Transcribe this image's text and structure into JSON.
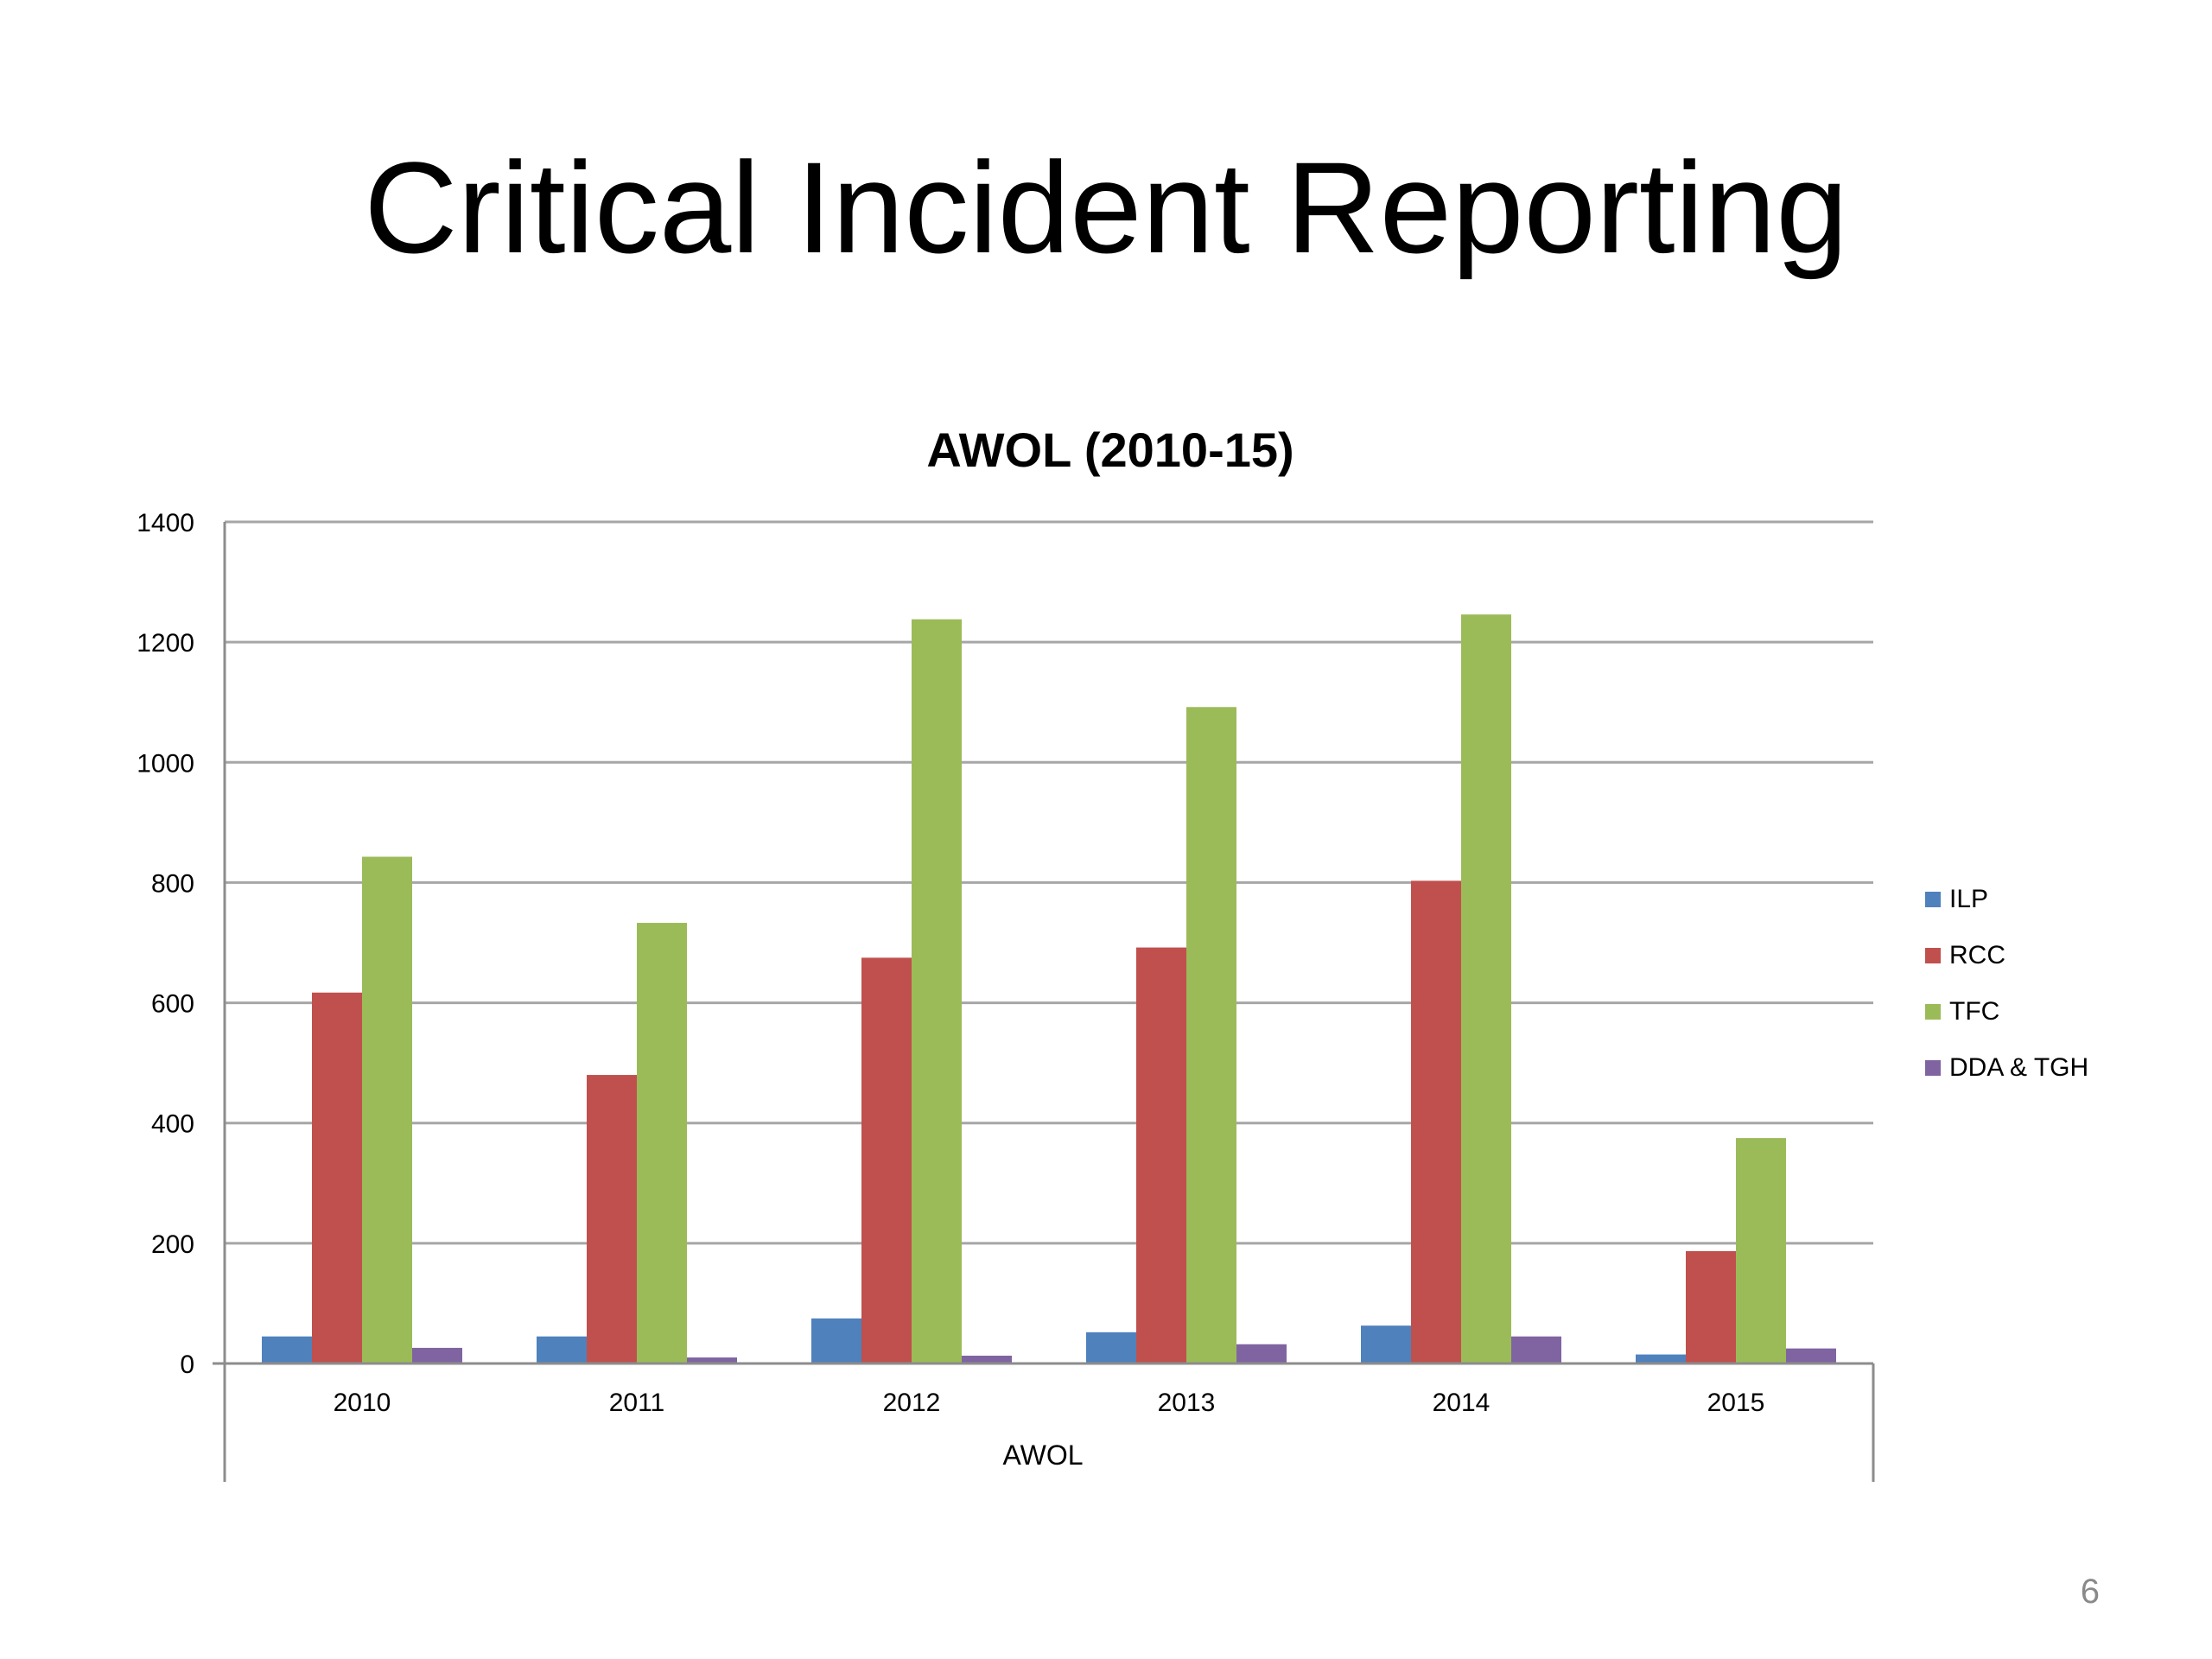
{
  "slide": {
    "title": "Critical Incident Reporting",
    "page_number": "6"
  },
  "chart_data": {
    "type": "bar",
    "title": "AWOL (2010-15)",
    "xlabel": "AWOL",
    "ylabel": "",
    "categories": [
      "2010",
      "2011",
      "2012",
      "2013",
      "2014",
      "2015"
    ],
    "ylim": [
      0,
      1400
    ],
    "yticks": [
      0,
      200,
      400,
      600,
      800,
      1000,
      1200,
      1400
    ],
    "grid": true,
    "legend_position": "right",
    "series": [
      {
        "name": "ILP",
        "color": "#4F81BD",
        "values": [
          45,
          45,
          75,
          52,
          63,
          15
        ]
      },
      {
        "name": "RCC",
        "color": "#C0504D",
        "values": [
          617,
          480,
          675,
          692,
          803,
          187
        ]
      },
      {
        "name": "TFC",
        "color": "#9BBB59",
        "values": [
          843,
          733,
          1238,
          1092,
          1246,
          375
        ]
      },
      {
        "name": "DDA & TGH",
        "color": "#8064A2",
        "values": [
          26,
          10,
          13,
          32,
          45,
          25
        ]
      }
    ]
  }
}
